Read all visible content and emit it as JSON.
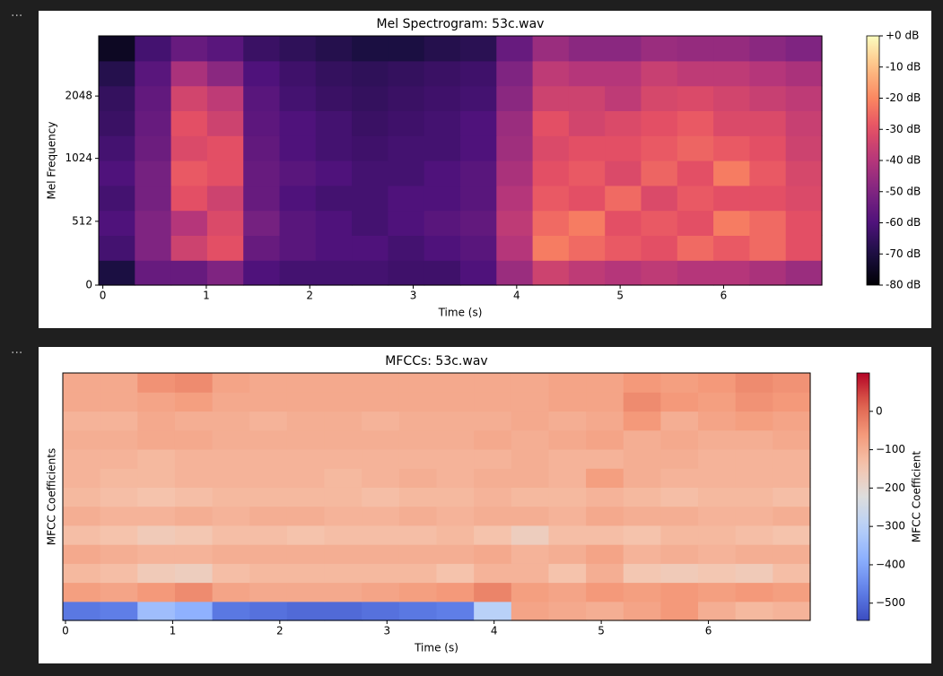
{
  "cell_marker": "···",
  "chart_data": [
    {
      "type": "heatmap",
      "title": "Mel Spectrogram: 53c.wav",
      "xlabel": "Time (s)",
      "ylabel": "Mel Frequency",
      "xlim": [
        -0.04,
        6.95
      ],
      "xticks": [
        0,
        1,
        2,
        3,
        4,
        5,
        6
      ],
      "ylim": [
        0,
        4000
      ],
      "yticks": [
        0,
        512,
        1024,
        2048
      ],
      "yscale": "symlog",
      "linthresh": 1000,
      "base": 2,
      "colormap": "magma",
      "clim": [
        -80,
        0
      ],
      "colorbar_ticks": [
        {
          "value": 0,
          "label": "+0 dB"
        },
        {
          "value": -10,
          "label": "-10 dB"
        },
        {
          "value": -20,
          "label": "-20 dB"
        },
        {
          "value": -30,
          "label": "-30 dB"
        },
        {
          "value": -40,
          "label": "-40 dB"
        },
        {
          "value": -50,
          "label": "-50 dB"
        },
        {
          "value": -60,
          "label": "-60 dB"
        },
        {
          "value": -70,
          "label": "-70 dB"
        },
        {
          "value": -80,
          "label": "-80 dB"
        }
      ],
      "values": [
        [
          -70,
          -55,
          -55,
          -50,
          -60,
          -62,
          -62,
          -62,
          -63,
          -63,
          -60,
          -45,
          -35,
          -38,
          -40,
          -38,
          -40,
          -40,
          -42,
          -45
        ],
        [
          -62,
          -50,
          -35,
          -30,
          -55,
          -58,
          -60,
          -60,
          -62,
          -60,
          -58,
          -40,
          -22,
          -25,
          -28,
          -30,
          -25,
          -28,
          -25,
          -30
        ],
        [
          -60,
          -50,
          -40,
          -32,
          -52,
          -58,
          -60,
          -62,
          -60,
          -58,
          -56,
          -38,
          -25,
          -22,
          -30,
          -28,
          -30,
          -22,
          -25,
          -30
        ],
        [
          -62,
          -52,
          -30,
          -35,
          -55,
          -60,
          -62,
          -62,
          -60,
          -60,
          -58,
          -40,
          -28,
          -30,
          -25,
          -32,
          -28,
          -30,
          -30,
          -32
        ],
        [
          -60,
          -52,
          -28,
          -30,
          -55,
          -58,
          -60,
          -62,
          -62,
          -60,
          -58,
          -42,
          -30,
          -28,
          -32,
          -26,
          -30,
          -22,
          -28,
          -33
        ],
        [
          -62,
          -54,
          -32,
          -30,
          -56,
          -60,
          -62,
          -63,
          -62,
          -62,
          -60,
          -44,
          -32,
          -30,
          -30,
          -28,
          -26,
          -28,
          -30,
          -35
        ],
        [
          -64,
          -55,
          -30,
          -35,
          -57,
          -60,
          -62,
          -64,
          -63,
          -62,
          -60,
          -45,
          -30,
          -34,
          -32,
          -30,
          -28,
          -32,
          -32,
          -36
        ],
        [
          -65,
          -56,
          -34,
          -38,
          -58,
          -62,
          -64,
          -65,
          -64,
          -63,
          -62,
          -48,
          -35,
          -35,
          -38,
          -33,
          -32,
          -34,
          -36,
          -38
        ],
        [
          -68,
          -58,
          -42,
          -48,
          -60,
          -63,
          -65,
          -66,
          -65,
          -64,
          -63,
          -50,
          -38,
          -40,
          -40,
          -36,
          -38,
          -38,
          -40,
          -42
        ],
        [
          -75,
          -62,
          -55,
          -58,
          -64,
          -66,
          -68,
          -70,
          -70,
          -68,
          -67,
          -55,
          -45,
          -48,
          -48,
          -45,
          -46,
          -46,
          -48,
          -50
        ]
      ]
    },
    {
      "type": "heatmap",
      "title": "MFCCs: 53c.wav",
      "xlabel": "Time (s)",
      "ylabel": "MFCC Coefficients",
      "xlim": [
        -0.025,
        6.95
      ],
      "xticks": [
        0,
        1,
        2,
        3,
        4,
        5,
        6
      ],
      "colormap": "coolwarm",
      "clim": [
        -545,
        100
      ],
      "colorbar_label": "MFCC Coefficient",
      "colorbar_ticks": [
        0,
        {
          "value": -100,
          "label": "−100"
        },
        {
          "value": -200,
          "label": "−200"
        },
        {
          "value": -300,
          "label": "−300"
        },
        {
          "value": -400,
          "label": "−400"
        },
        {
          "value": -500,
          "label": "−500"
        }
      ],
      "values": [
        [
          -480,
          -470,
          -350,
          -380,
          -480,
          -490,
          -500,
          -500,
          -490,
          -480,
          -470,
          -300,
          -80,
          -90,
          -100,
          -80,
          -60,
          -100,
          -120,
          -110
        ],
        [
          -70,
          -80,
          -60,
          -40,
          -80,
          -90,
          -90,
          -90,
          -80,
          -70,
          -60,
          -30,
          -70,
          -80,
          -60,
          -70,
          -60,
          -70,
          -60,
          -70
        ],
        [
          -120,
          -130,
          -160,
          -170,
          -130,
          -120,
          -120,
          -120,
          -120,
          -120,
          -140,
          -110,
          -110,
          -140,
          -100,
          -150,
          -160,
          -150,
          -160,
          -130
        ],
        [
          -90,
          -100,
          -110,
          -110,
          -100,
          -100,
          -100,
          -100,
          -100,
          -100,
          -100,
          -90,
          -110,
          -100,
          -80,
          -110,
          -100,
          -110,
          -100,
          -100
        ],
        [
          -130,
          -140,
          -160,
          -150,
          -130,
          -130,
          -140,
          -130,
          -130,
          -130,
          -120,
          -140,
          -170,
          -130,
          -130,
          -140,
          -120,
          -120,
          -130,
          -140
        ],
        [
          -100,
          -110,
          -110,
          -100,
          -110,
          -100,
          -100,
          -110,
          -110,
          -100,
          -110,
          -100,
          -100,
          -110,
          -90,
          -100,
          -100,
          -110,
          -110,
          -100
        ],
        [
          -120,
          -130,
          -140,
          -130,
          -120,
          -120,
          -120,
          -120,
          -130,
          -120,
          -120,
          -110,
          -120,
          -120,
          -110,
          -120,
          -130,
          -120,
          -120,
          -130
        ],
        [
          -110,
          -120,
          -120,
          -110,
          -110,
          -110,
          -110,
          -120,
          -110,
          -100,
          -110,
          -100,
          -100,
          -110,
          -70,
          -100,
          -110,
          -110,
          -110,
          -110
        ],
        [
          -110,
          -110,
          -120,
          -110,
          -110,
          -110,
          -110,
          -110,
          -110,
          -110,
          -110,
          -110,
          -100,
          -110,
          -110,
          -100,
          -100,
          -110,
          -110,
          -110
        ],
        [
          -100,
          -100,
          -90,
          -90,
          -100,
          -100,
          -100,
          -100,
          -100,
          -100,
          -100,
          -90,
          -100,
          -90,
          -80,
          -100,
          -90,
          -100,
          -100,
          -90
        ],
        [
          -110,
          -110,
          -90,
          -100,
          -100,
          -110,
          -100,
          -100,
          -110,
          -100,
          -100,
          -100,
          -90,
          -100,
          -90,
          -60,
          -100,
          -80,
          -70,
          -80
        ],
        [
          -90,
          -90,
          -80,
          -70,
          -90,
          -90,
          -90,
          -90,
          -90,
          -90,
          -90,
          -90,
          -90,
          -80,
          -80,
          -40,
          -60,
          -70,
          -50,
          -60
        ],
        [
          -90,
          -90,
          -50,
          -40,
          -80,
          -90,
          -90,
          -90,
          -90,
          -90,
          -90,
          -90,
          -90,
          -80,
          -80,
          -60,
          -70,
          -60,
          -40,
          -50
        ]
      ]
    }
  ]
}
